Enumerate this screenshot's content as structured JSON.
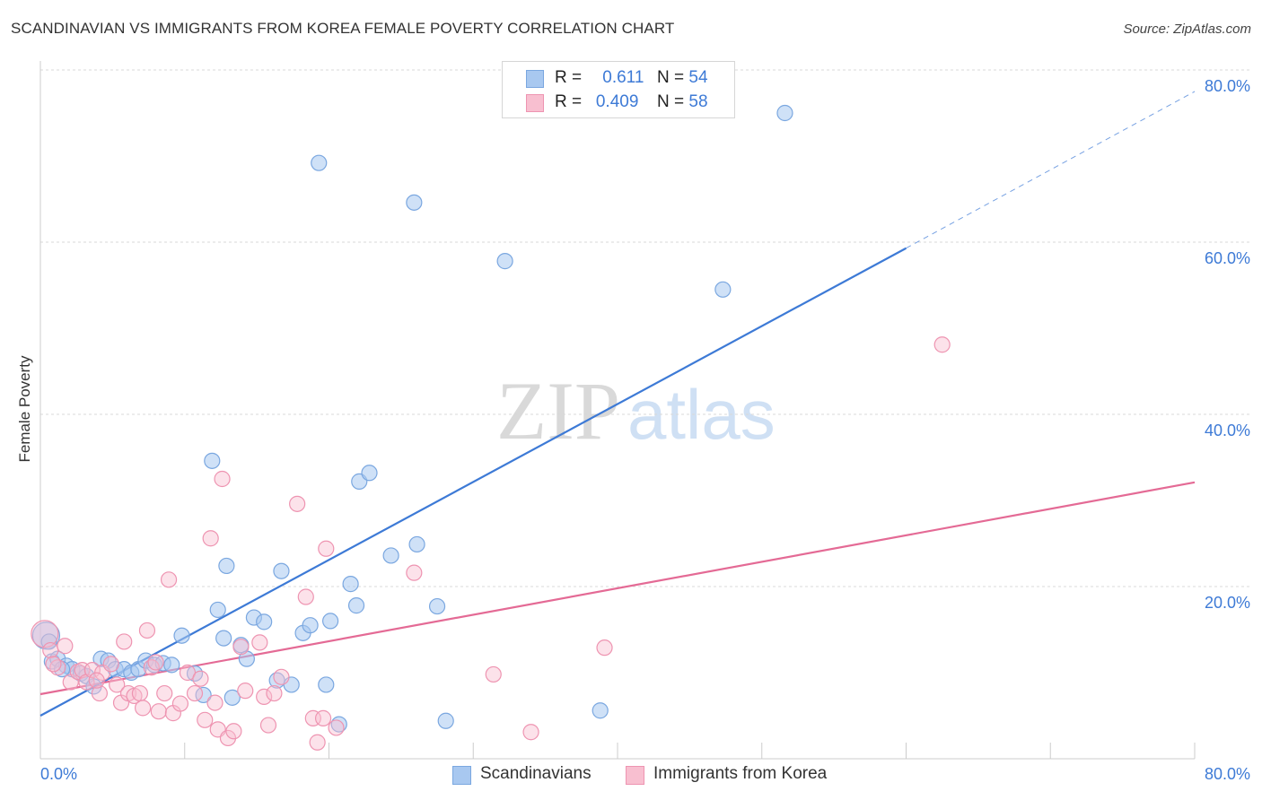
{
  "header": {
    "title": "SCANDINAVIAN VS IMMIGRANTS FROM KOREA FEMALE POVERTY CORRELATION CHART",
    "source": "Source: ZipAtlas.com"
  },
  "legend_top": {
    "rows": [
      {
        "r_label": "R =",
        "r_value": "0.611",
        "n_label": "N =",
        "n_value": "54",
        "color": "#a8c8f0",
        "border": "#7aa7e0"
      },
      {
        "r_label": "R =",
        "r_value": "0.409",
        "n_label": "N =",
        "n_value": "58",
        "color": "#f8bfd0",
        "border": "#ee94b1"
      }
    ]
  },
  "legend_bottom": {
    "items": [
      {
        "label": "Scandinavians",
        "color": "#a8c8f0",
        "border": "#7aa7e0"
      },
      {
        "label": "Immigrants from Korea",
        "color": "#f8bfd0",
        "border": "#ee94b1"
      }
    ]
  },
  "watermark": {
    "part1": "ZIP",
    "part2": "atlas"
  },
  "chart_data": {
    "type": "scatter",
    "title": "SCANDINAVIAN VS IMMIGRANTS FROM KOREA FEMALE POVERTY CORRELATION CHART",
    "xlabel": "",
    "ylabel": "Female Poverty",
    "xlim": [
      0,
      80
    ],
    "ylim": [
      0,
      80
    ],
    "x_tick_labels": [
      "0.0%",
      "80.0%"
    ],
    "y_tick_labels": [
      "20.0%",
      "40.0%",
      "60.0%",
      "80.0%"
    ],
    "y_ticks": [
      20,
      40,
      60,
      80
    ],
    "grid": true,
    "legend_position": "top-center",
    "colors": {
      "series1": "#3d7ad6",
      "series2": "#e46a95",
      "tick_label": "#3d7ad6"
    },
    "series": [
      {
        "name": "Scandinavians",
        "r": 0.611,
        "n": 54,
        "trend": {
          "x": [
            0,
            60
          ],
          "y": [
            5.0,
            59.3
          ],
          "dashed_to": [
            80,
            77.5
          ]
        },
        "points": [
          [
            0.4,
            14.3
          ],
          [
            0.8,
            11.3
          ],
          [
            1.2,
            11.6
          ],
          [
            1.8,
            10.8
          ],
          [
            2.2,
            10.4
          ],
          [
            2.8,
            9.9
          ],
          [
            3.2,
            9.6
          ],
          [
            3.7,
            8.4
          ],
          [
            4.2,
            11.6
          ],
          [
            4.7,
            11.4
          ],
          [
            5.2,
            10.4
          ],
          [
            5.8,
            10.4
          ],
          [
            6.3,
            10.0
          ],
          [
            6.8,
            10.4
          ],
          [
            7.3,
            11.4
          ],
          [
            7.9,
            10.9
          ],
          [
            8.5,
            11.1
          ],
          [
            9.1,
            10.9
          ],
          [
            9.8,
            14.3
          ],
          [
            10.7,
            9.9
          ],
          [
            11.3,
            7.4
          ],
          [
            11.9,
            34.6
          ],
          [
            12.3,
            17.3
          ],
          [
            12.7,
            14.0
          ],
          [
            12.9,
            22.4
          ],
          [
            13.3,
            7.1
          ],
          [
            13.9,
            13.2
          ],
          [
            14.3,
            11.6
          ],
          [
            14.8,
            16.4
          ],
          [
            15.5,
            15.9
          ],
          [
            16.4,
            9.1
          ],
          [
            16.7,
            21.8
          ],
          [
            17.4,
            8.6
          ],
          [
            18.2,
            14.6
          ],
          [
            18.7,
            15.5
          ],
          [
            19.3,
            69.2
          ],
          [
            19.8,
            8.6
          ],
          [
            20.1,
            16.0
          ],
          [
            20.7,
            4.0
          ],
          [
            21.5,
            20.3
          ],
          [
            21.9,
            17.8
          ],
          [
            22.1,
            32.2
          ],
          [
            22.8,
            33.2
          ],
          [
            24.3,
            23.6
          ],
          [
            25.9,
            64.6
          ],
          [
            26.1,
            24.9
          ],
          [
            27.5,
            17.7
          ],
          [
            28.1,
            4.4
          ],
          [
            32.2,
            57.8
          ],
          [
            38.8,
            5.6
          ],
          [
            47.3,
            54.5
          ],
          [
            51.6,
            75.0
          ],
          [
            0.6,
            13.6
          ],
          [
            1.5,
            10.4
          ]
        ]
      },
      {
        "name": "Immigrants from Korea",
        "r": 0.409,
        "n": 58,
        "trend": {
          "x": [
            0,
            80
          ],
          "y": [
            7.5,
            32.1
          ]
        },
        "points": [
          [
            0.3,
            14.5
          ],
          [
            0.7,
            12.6
          ],
          [
            1.2,
            10.6
          ],
          [
            1.7,
            13.1
          ],
          [
            2.1,
            8.9
          ],
          [
            2.6,
            10.1
          ],
          [
            2.9,
            10.3
          ],
          [
            3.2,
            8.9
          ],
          [
            3.6,
            10.3
          ],
          [
            4.1,
            7.6
          ],
          [
            4.3,
            10.0
          ],
          [
            4.9,
            11.0
          ],
          [
            5.3,
            8.6
          ],
          [
            5.6,
            6.5
          ],
          [
            5.8,
            13.6
          ],
          [
            6.1,
            7.6
          ],
          [
            6.5,
            7.3
          ],
          [
            6.9,
            7.6
          ],
          [
            7.1,
            5.9
          ],
          [
            7.4,
            14.9
          ],
          [
            7.7,
            10.6
          ],
          [
            8.2,
            5.5
          ],
          [
            8.6,
            7.6
          ],
          [
            8.9,
            20.8
          ],
          [
            9.2,
            5.3
          ],
          [
            9.7,
            6.4
          ],
          [
            10.2,
            10.0
          ],
          [
            10.7,
            7.6
          ],
          [
            11.1,
            9.3
          ],
          [
            11.4,
            4.5
          ],
          [
            11.8,
            25.6
          ],
          [
            12.1,
            6.5
          ],
          [
            12.3,
            3.4
          ],
          [
            12.6,
            32.5
          ],
          [
            13.0,
            2.4
          ],
          [
            13.4,
            3.2
          ],
          [
            13.9,
            13.0
          ],
          [
            14.2,
            7.9
          ],
          [
            15.2,
            13.5
          ],
          [
            15.5,
            7.2
          ],
          [
            15.8,
            3.9
          ],
          [
            16.2,
            7.6
          ],
          [
            16.7,
            9.5
          ],
          [
            17.8,
            29.6
          ],
          [
            18.4,
            18.8
          ],
          [
            18.9,
            4.7
          ],
          [
            19.2,
            1.9
          ],
          [
            19.6,
            4.7
          ],
          [
            19.8,
            24.4
          ],
          [
            20.5,
            3.6
          ],
          [
            25.9,
            21.6
          ],
          [
            31.4,
            9.8
          ],
          [
            34.0,
            3.1
          ],
          [
            39.1,
            12.9
          ],
          [
            62.5,
            48.1
          ],
          [
            0.9,
            11.0
          ],
          [
            3.9,
            9.1
          ],
          [
            8.0,
            11.2
          ]
        ]
      }
    ]
  }
}
